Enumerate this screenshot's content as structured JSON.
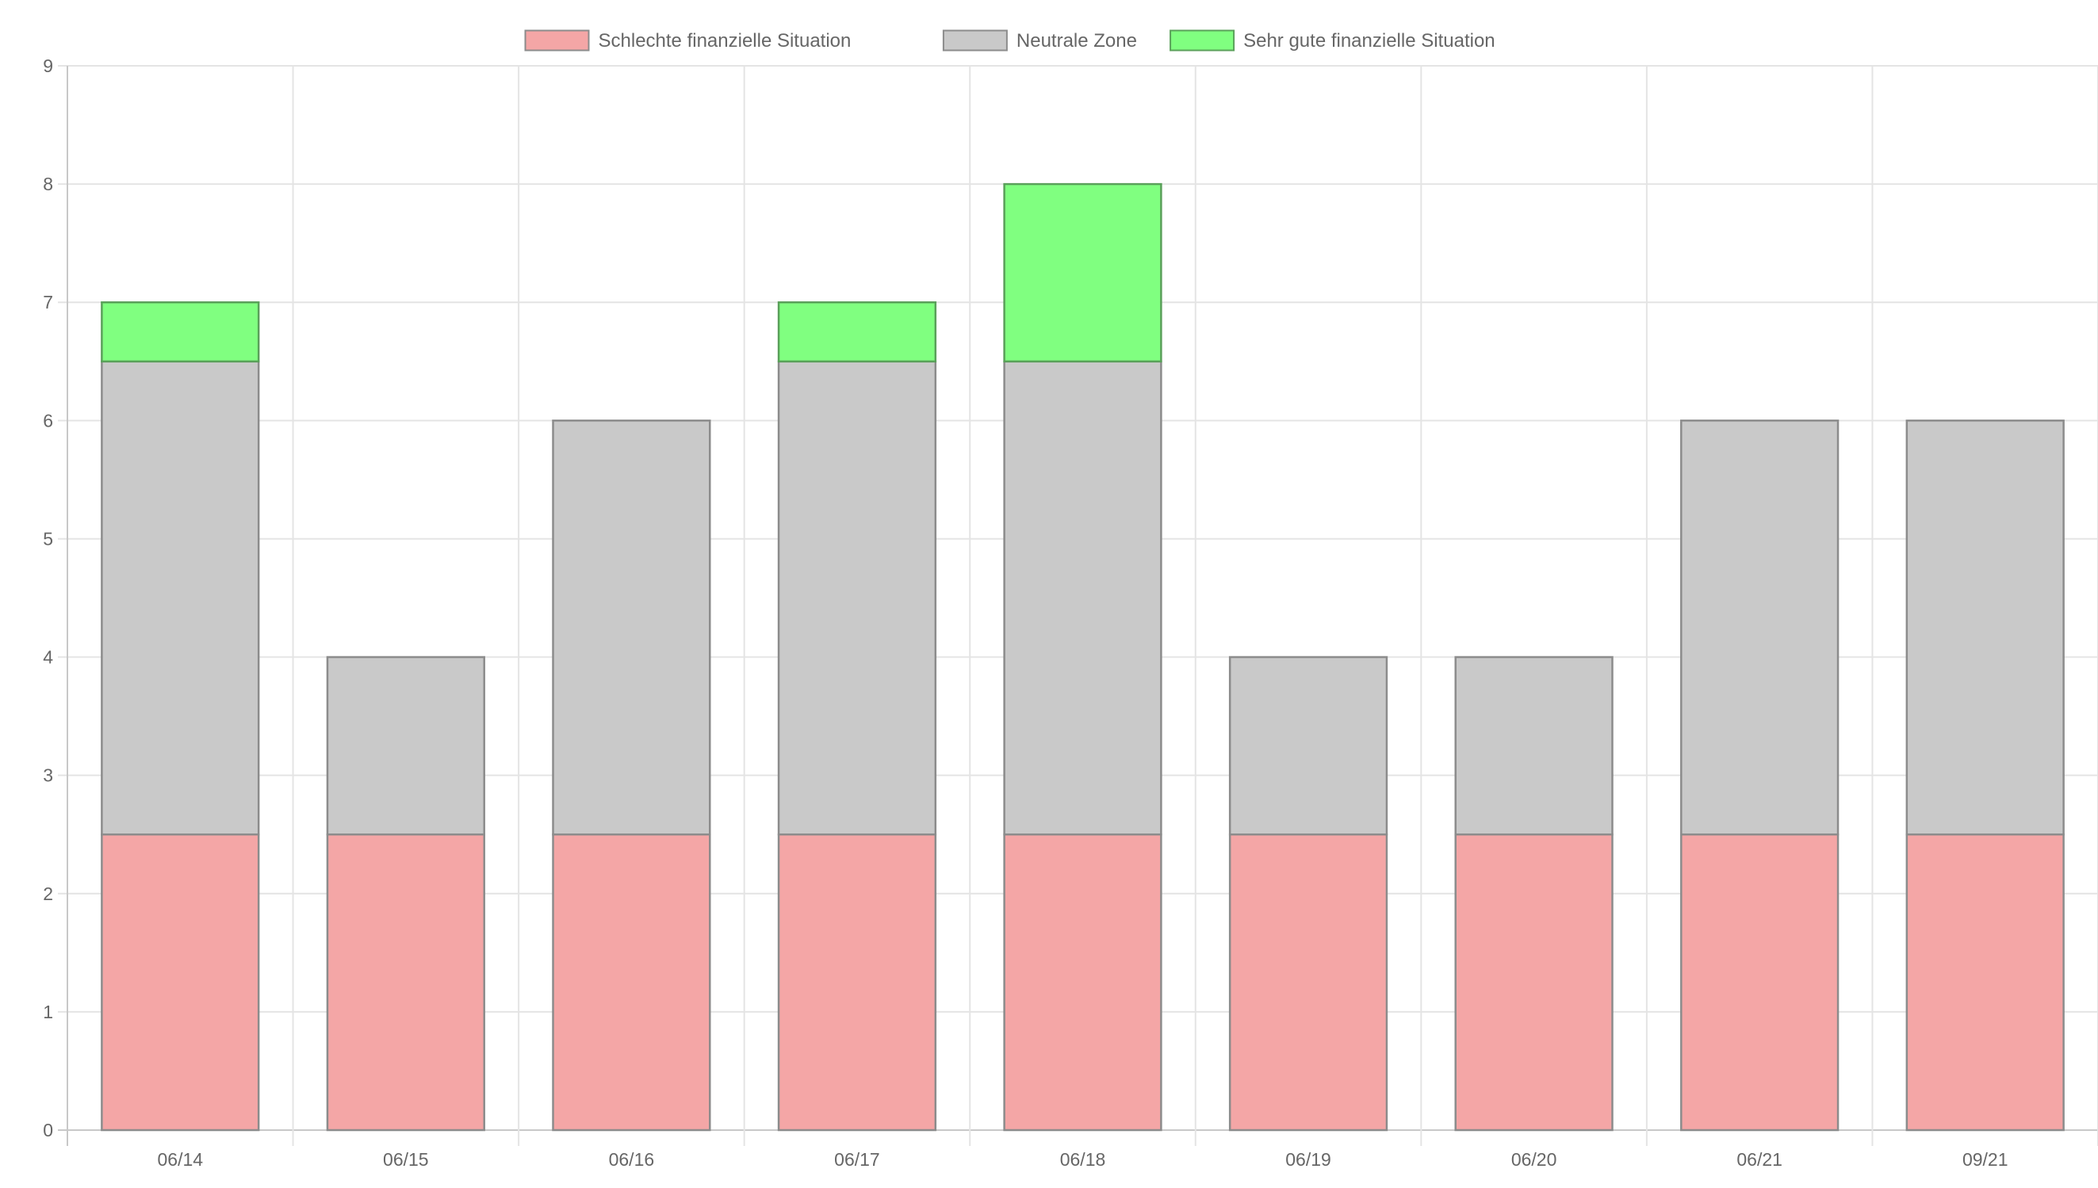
{
  "chart_data": {
    "type": "bar",
    "stacked": true,
    "categories": [
      "06/14",
      "06/15",
      "06/16",
      "06/17",
      "06/18",
      "06/19",
      "06/20",
      "06/21",
      "09/21"
    ],
    "series": [
      {
        "name": "Schlechte finanzielle Situation",
        "color": "#f4a6a6",
        "border": "#8c8c8c",
        "values": [
          2.5,
          2.5,
          2.5,
          2.5,
          2.5,
          2.5,
          2.5,
          2.5,
          2.5
        ]
      },
      {
        "name": "Neutrale Zone",
        "color": "#c9c9c9",
        "border": "#8c8c8c",
        "values": [
          4,
          1.5,
          3.5,
          4,
          4,
          1.5,
          1.5,
          3.5,
          3.5
        ]
      },
      {
        "name": "Sehr gute finanzielle Situation",
        "color": "#80ff80",
        "border": "#5aa05a",
        "values": [
          0.5,
          0,
          0,
          0.5,
          1.5,
          0,
          0,
          0,
          0
        ]
      }
    ],
    "ylim": [
      0,
      9
    ],
    "yticks": [
      "0",
      "1",
      "2",
      "3",
      "4",
      "5",
      "6",
      "7",
      "8",
      "9"
    ],
    "grid": true,
    "legend_position": "top"
  }
}
